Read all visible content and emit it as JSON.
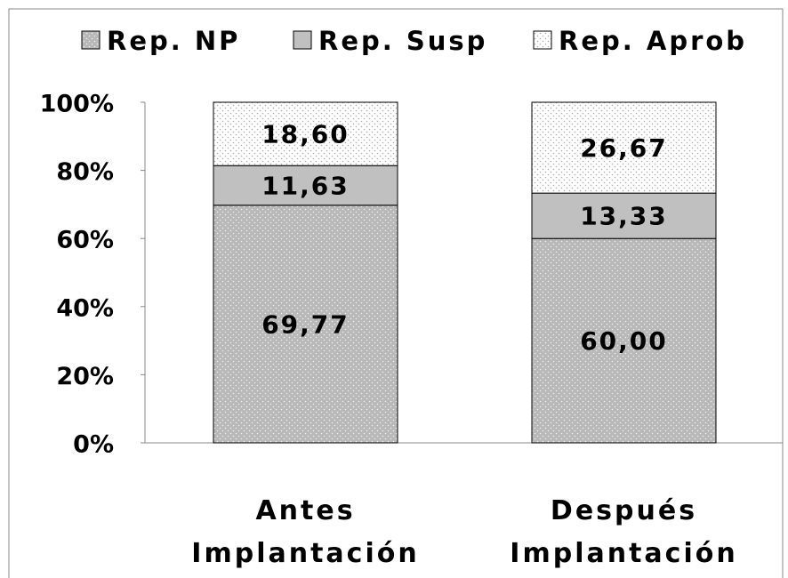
{
  "chart_data": {
    "type": "stacked_bar_100",
    "categories": [
      "Antes Implantación",
      "Después Implantación"
    ],
    "series": [
      {
        "name": "Rep. NP",
        "color": "#b8b8b8",
        "pattern": "dotted",
        "values": [
          69.77,
          60.0
        ],
        "value_labels": [
          "69,77",
          "60,00"
        ]
      },
      {
        "name": "Rep. Susp",
        "color": "#c0c0c0",
        "pattern": "solid",
        "values": [
          11.63,
          13.33
        ],
        "value_labels": [
          "11,63",
          "13,33"
        ]
      },
      {
        "name": "Rep. Aprob",
        "color": "#ffffff",
        "pattern": "dotted",
        "values": [
          18.6,
          26.67
        ],
        "value_labels": [
          "18,60",
          "26,67"
        ]
      }
    ],
    "ylim": [
      0,
      100
    ],
    "yticks": [
      {
        "value": 0,
        "label": "0%"
      },
      {
        "value": 20,
        "label": "20%"
      },
      {
        "value": 40,
        "label": "40%"
      },
      {
        "value": 60,
        "label": "60%"
      },
      {
        "value": 80,
        "label": "80%"
      },
      {
        "value": 100,
        "label": "100%"
      }
    ],
    "legend": "top"
  }
}
